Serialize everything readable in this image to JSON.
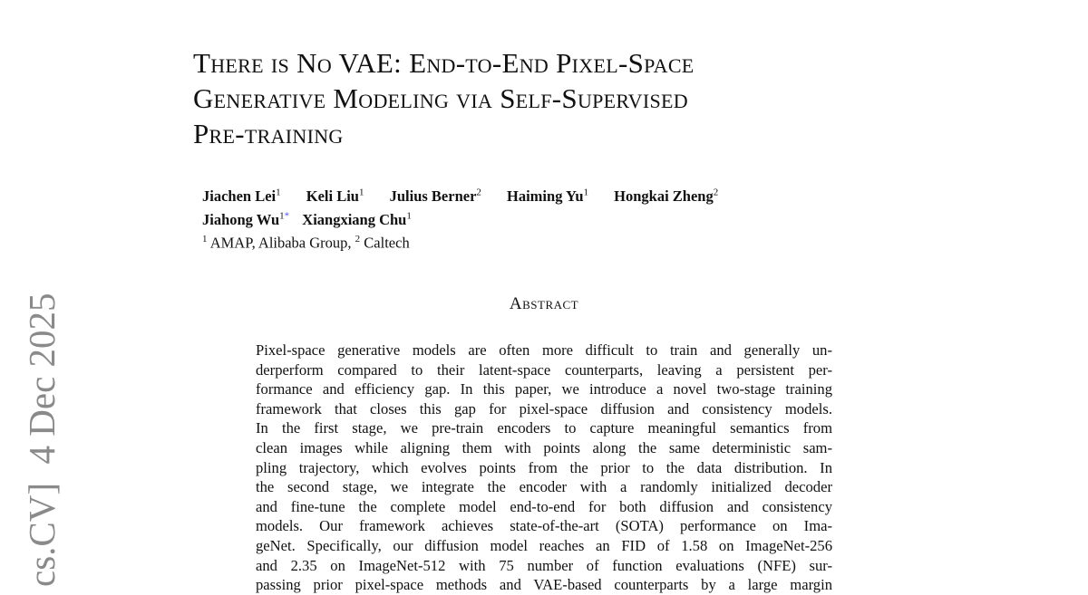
{
  "arxiv_stamp": "cs.CV]  4 Dec 2025",
  "title_lines": [
    "There is No VAE: End-to-End Pixel-Space",
    "Generative Modeling via Self-Supervised",
    "Pre-training"
  ],
  "authors": [
    {
      "name": "Jiachen Lei",
      "aff": "1"
    },
    {
      "name": "Keli Liu",
      "aff": "1"
    },
    {
      "name": "Julius Berner",
      "aff": "2"
    },
    {
      "name": "Haiming Yu",
      "aff": "1"
    },
    {
      "name": "Hongkai Zheng",
      "aff": "2"
    },
    {
      "name": "Jiahong Wu",
      "aff": "1",
      "mark": "*"
    },
    {
      "name": "Xiangxiang Chu",
      "aff": "1"
    }
  ],
  "affiliations": {
    "n1": "1",
    "t1": " AMAP, Alibaba Group, ",
    "n2": "2",
    "t2": " Caltech"
  },
  "abstract_heading": "Abstract",
  "abstract_lines": [
    "Pixel-space generative models are often more difficult to train and generally un-",
    "derperform compared to their latent-space counterparts, leaving a persistent per-",
    "formance and efficiency gap. In this paper, we introduce a novel two-stage training",
    "framework that closes this gap for pixel-space diffusion and consistency models.",
    "In the first stage, we pre-train encoders to capture meaningful semantics from",
    "clean images while aligning them with points along the same deterministic sam-",
    "pling trajectory, which evolves points from the prior to the data distribution. In",
    "the second stage, we integrate the encoder with a randomly initialized decoder",
    "and fine-tune the complete model end-to-end for both diffusion and consistency",
    "models. Our framework achieves state-of-the-art (SOTA) performance on Ima-",
    "geNet. Specifically, our diffusion model reaches an FID of 1.58 on ImageNet-256",
    "and 2.35 on ImageNet-512 with 75 number of function evaluations (NFE) sur-",
    "passing prior pixel-space methods and VAE-based counterparts by a large margin"
  ]
}
